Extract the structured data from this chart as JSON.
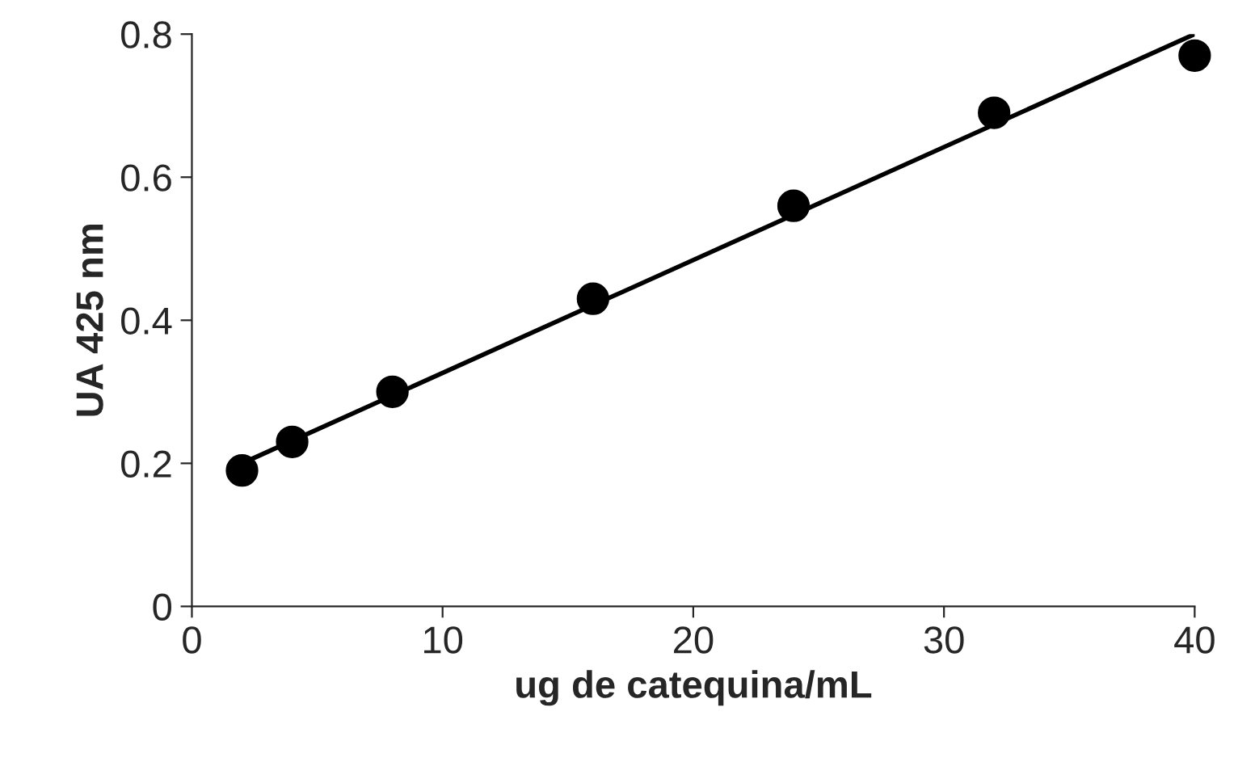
{
  "chart_data": {
    "type": "scatter",
    "xlabel": "ug de catequina/mL",
    "ylabel": "UA 425 nm",
    "series": [
      {
        "color": "#000000",
        "marker": "circle",
        "x": [
          2,
          4,
          8,
          16,
          24,
          32,
          40
        ],
        "values": [
          0.19,
          0.23,
          0.3,
          0.43,
          0.56,
          0.69,
          0.77
        ]
      },
      {
        "type": "line",
        "color": "#000000",
        "line_style": "solid",
        "marker": "none",
        "x": [
          2,
          40
        ],
        "values": [
          0.2,
          0.8
        ]
      }
    ],
    "xlim": [
      0,
      40
    ],
    "xticks": [
      0,
      10,
      20,
      30,
      40
    ],
    "ylim": [
      0,
      0.8
    ],
    "yticks": [
      0,
      0.2,
      0.4,
      0.6,
      0.8
    ],
    "grid": false,
    "legend": false
  }
}
